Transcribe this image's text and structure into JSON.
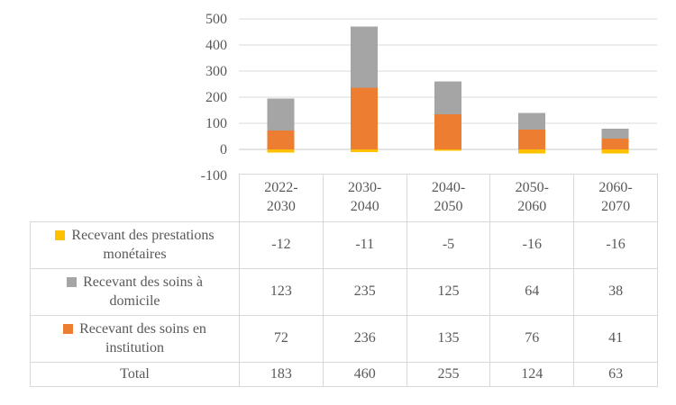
{
  "chart_data": {
    "type": "bar",
    "stacked": true,
    "title": "",
    "xlabel": "",
    "ylabel": "",
    "categories": [
      "2022-2030",
      "2030-2040",
      "2040-2050",
      "2050-2060",
      "2060-2070"
    ],
    "series": [
      {
        "name": "Recevant des prestations monétaires",
        "name_lines": [
          "Recevant des prestations",
          "monétaires"
        ],
        "color": "#FFC000",
        "values": [
          -12,
          -11,
          -5,
          -16,
          -16
        ]
      },
      {
        "name": "Recevant des soins à domicile",
        "name_lines": [
          "Recevant des soins à",
          "domicile"
        ],
        "color": "#A5A5A5",
        "values": [
          123,
          235,
          125,
          64,
          38
        ]
      },
      {
        "name": "Recevant des soins en institution",
        "name_lines": [
          "Recevant des soins en",
          "institution"
        ],
        "color": "#ED7D31",
        "values": [
          72,
          236,
          135,
          76,
          41
        ]
      }
    ],
    "total_row": {
      "label": "Total",
      "values": [
        183,
        460,
        255,
        124,
        63
      ]
    },
    "ylim": [
      -100,
      500
    ],
    "yticks": [
      500,
      400,
      300,
      200,
      100,
      0,
      -100
    ],
    "grid": true,
    "legend_position": "table-rows"
  },
  "style": {
    "text_color": "#595959",
    "grid_color": "#D9D9D9",
    "zero_axis_color": "#C9C9C9",
    "table_border_color": "#D9D9D9",
    "background": "#FFFFFF"
  }
}
